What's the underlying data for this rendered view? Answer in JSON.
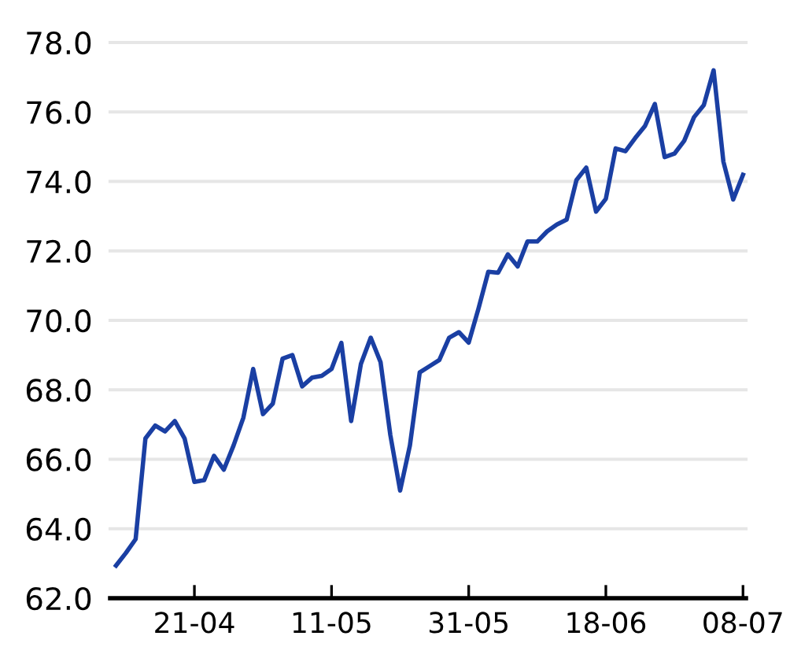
{
  "chart_data": {
    "type": "line",
    "categories": [
      null,
      null,
      null,
      null,
      null,
      null,
      null,
      null,
      "21-04",
      null,
      null,
      null,
      null,
      null,
      null,
      null,
      null,
      null,
      null,
      null,
      null,
      null,
      "11-05",
      null,
      null,
      null,
      null,
      null,
      null,
      null,
      null,
      null,
      null,
      null,
      null,
      null,
      "31-05",
      null,
      null,
      null,
      null,
      null,
      null,
      null,
      null,
      null,
      null,
      null,
      null,
      null,
      "18-06",
      null,
      null,
      null,
      null,
      null,
      null,
      null,
      null,
      null,
      null,
      null,
      null,
      null,
      "08-07"
    ],
    "series": [
      {
        "color": "#1a3fa3",
        "values": [
          62.94,
          63.3,
          63.7,
          66.6,
          66.97,
          66.8,
          67.1,
          66.6,
          65.35,
          65.4,
          66.1,
          65.7,
          66.4,
          67.2,
          68.6,
          67.3,
          67.6,
          68.9,
          69.0,
          68.1,
          68.35,
          68.4,
          68.6,
          69.35,
          67.1,
          68.75,
          69.5,
          68.8,
          66.7,
          65.1,
          66.4,
          68.5,
          68.68,
          68.86,
          69.5,
          69.66,
          69.36,
          70.34,
          71.4,
          71.37,
          71.9,
          71.55,
          72.27,
          72.27,
          72.56,
          72.76,
          72.9,
          74.04,
          74.4,
          73.13,
          73.5,
          74.95,
          74.87,
          75.25,
          75.6,
          76.23,
          74.7,
          74.8,
          75.17,
          75.85,
          76.2,
          77.2,
          74.57,
          73.48,
          74.19
        ]
      }
    ],
    "ylim": [
      62,
      78
    ],
    "yticks": [
      {
        "value": 62,
        "label": "62.0"
      },
      {
        "value": 64,
        "label": "64.0"
      },
      {
        "value": 66,
        "label": "66.0"
      },
      {
        "value": 68,
        "label": "68.0"
      },
      {
        "value": 70,
        "label": "70.0"
      },
      {
        "value": 72,
        "label": "72.0"
      },
      {
        "value": 74,
        "label": "74.0"
      },
      {
        "value": 76,
        "label": "76.0"
      },
      {
        "value": 78,
        "label": "78.0"
      }
    ],
    "grid": "y",
    "line_style": "solid"
  }
}
